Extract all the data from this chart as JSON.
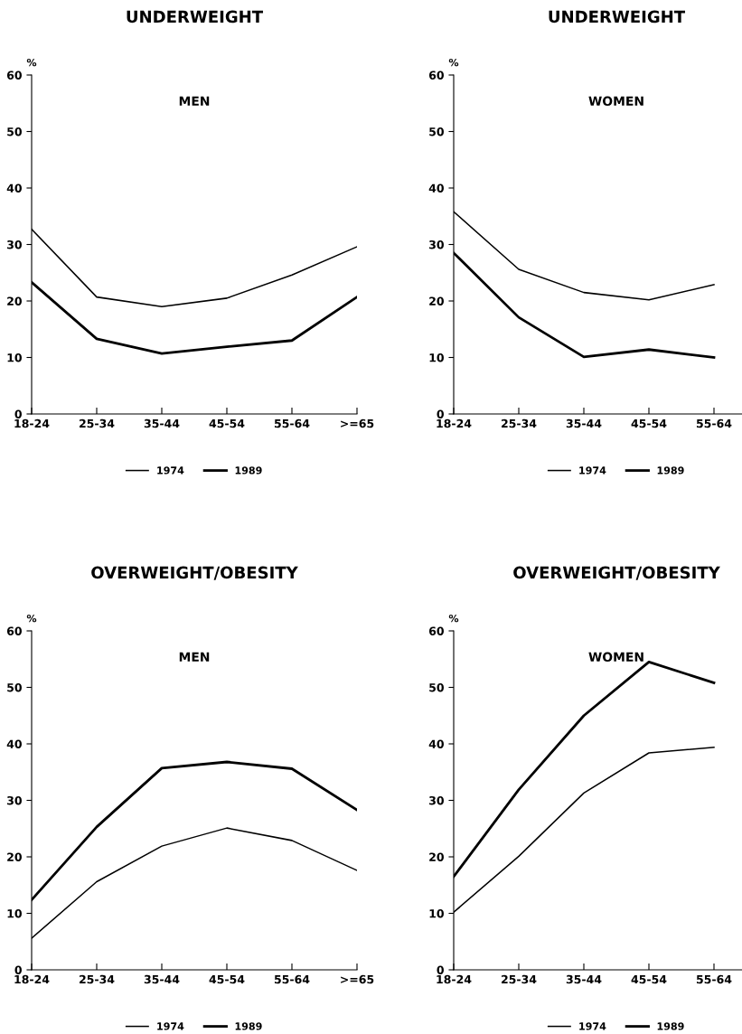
{
  "chart_data": [
    {
      "type": "line",
      "title": "UNDERWEIGHT",
      "subtitle": "MEN",
      "ylabel": "%",
      "categories": [
        "18-24",
        "25-34",
        "35-44",
        "45-54",
        "55-64",
        ">=65"
      ],
      "ylim": [
        0,
        60
      ],
      "yticks": [
        0,
        10,
        20,
        30,
        40,
        50,
        60
      ],
      "legend": "bottom",
      "marker": "none",
      "series": [
        {
          "name": "1974",
          "color": "#000000",
          "values": [
            32.7,
            20.7,
            19.0,
            20.5,
            24.6,
            29.6
          ]
        },
        {
          "name": "1989",
          "color": "#000000",
          "values": [
            23.3,
            13.3,
            10.7,
            11.9,
            13.0,
            20.7
          ]
        }
      ]
    },
    {
      "type": "line",
      "title": "UNDERWEIGHT",
      "subtitle": "WOMEN",
      "ylabel": "%",
      "categories": [
        "18-24",
        "25-34",
        "35-44",
        "45-54",
        "55-64",
        null
      ],
      "ylim": [
        0,
        60
      ],
      "yticks": [
        0,
        10,
        20,
        30,
        40,
        50,
        60
      ],
      "legend": "bottom",
      "marker": "none",
      "series": [
        {
          "name": "1974",
          "color": "#000000",
          "values": [
            35.8,
            25.6,
            21.5,
            20.2,
            22.9,
            null
          ]
        },
        {
          "name": "1989",
          "color": "#000000",
          "values": [
            28.5,
            17.1,
            10.1,
            11.4,
            10.0,
            null
          ]
        }
      ]
    },
    {
      "type": "line",
      "title": "OVERWEIGHT/OBESITY",
      "subtitle": "MEN",
      "ylabel": "%",
      "categories": [
        "18-24",
        "25-34",
        "35-44",
        "45-54",
        "55-64",
        ">=65"
      ],
      "ylim": [
        0,
        60
      ],
      "yticks": [
        0,
        10,
        20,
        30,
        40,
        50,
        60
      ],
      "legend": "bottom",
      "marker": "none",
      "series": [
        {
          "name": "1974",
          "color": "#000000",
          "values": [
            5.6,
            15.6,
            21.9,
            25.1,
            22.9,
            17.6
          ]
        },
        {
          "name": "1989",
          "color": "#000000",
          "values": [
            12.4,
            25.3,
            35.7,
            36.8,
            35.6,
            28.3
          ]
        }
      ]
    },
    {
      "type": "line",
      "title": "OVERWEIGHT/OBESITY",
      "subtitle": "WOMEN",
      "ylabel": "%",
      "categories": [
        "18-24",
        "25-34",
        "35-44",
        "45-54",
        "55-64",
        null
      ],
      "ylim": [
        0,
        60
      ],
      "yticks": [
        0,
        10,
        20,
        30,
        40,
        50,
        60
      ],
      "legend": "bottom",
      "marker": "none",
      "series": [
        {
          "name": "1974",
          "color": "#000000",
          "values": [
            10.2,
            20.1,
            31.3,
            38.4,
            39.4,
            null
          ]
        },
        {
          "name": "1989",
          "color": "#000000",
          "values": [
            16.5,
            31.9,
            45.0,
            54.5,
            50.8,
            null
          ]
        }
      ]
    }
  ]
}
